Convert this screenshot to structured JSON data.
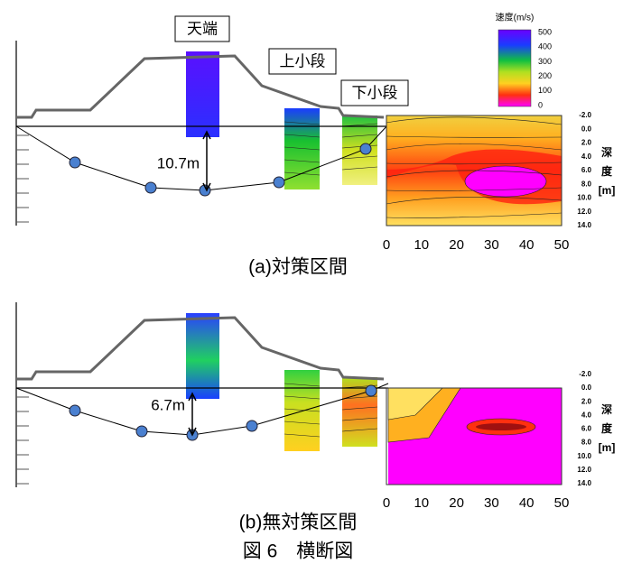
{
  "colorbar": {
    "title": "速度(m/s)",
    "labels": [
      "500",
      "400",
      "300",
      "200",
      "100",
      "0"
    ]
  },
  "panels": [
    {
      "labels": {
        "crest": "天端",
        "upper": "上小段",
        "lower": "下小段"
      },
      "depth_label": "10.7m",
      "y_ticks": [
        "-2.0",
        "0.0",
        "2.0",
        "4.0",
        "6.0",
        "8.0",
        "10.0",
        "12.0",
        "14.0"
      ],
      "y_title": [
        "深",
        "度",
        "[m]"
      ],
      "x_ticks": [
        "0",
        "10",
        "20",
        "30",
        "40",
        "50"
      ],
      "caption": "(a)対策区間"
    },
    {
      "depth_label": "6.7m",
      "y_ticks": [
        "-2.0",
        "0.0",
        "2.0",
        "4.0",
        "6.0",
        "8.0",
        "10.0",
        "12.0",
        "14.0"
      ],
      "y_title": [
        "深",
        "度",
        "[m]"
      ],
      "x_ticks": [
        "0",
        "10",
        "20",
        "30",
        "40",
        "50"
      ],
      "caption": "(b)無対策区間"
    }
  ],
  "figure_caption": "図 6　横断図"
}
